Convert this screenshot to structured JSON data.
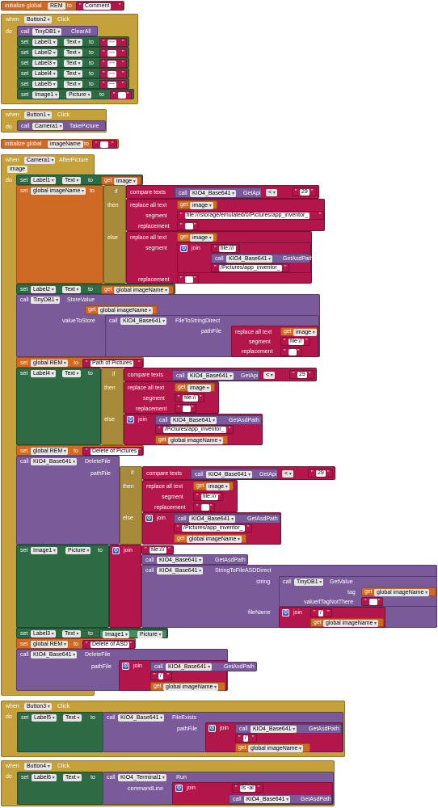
{
  "blocks": {
    "init_rem": {
      "label": "initialize global",
      "name": "REM",
      "to": "to",
      "value": "Comment"
    },
    "b2": {
      "when": "when",
      "button": "Button2",
      "event": "Click",
      "do": "do",
      "call": "call",
      "db": "TinyDB1",
      "method": "ClearAll",
      "set": "set",
      "to": "to",
      "prop_text": "Text",
      "prop_picture": "Picture",
      "labels": [
        "Label1",
        "Label2",
        "Label3",
        "Label4",
        "Label5"
      ],
      "val": "---",
      "image": "Image1",
      "picval": ""
    },
    "b1": {
      "when": "when",
      "button": "Button1",
      "event": "Click",
      "do": "do",
      "call": "call",
      "camera": "Camera1",
      "method": "TakePicture"
    },
    "init_imgname": {
      "label": "initialize global",
      "name": "imageName",
      "to": "to",
      "value": ""
    },
    "cam": {
      "when": "when",
      "camera": "Camera1",
      "event": "AfterPicture",
      "param": "image",
      "do": "do"
    }
  },
  "kw": {
    "set": "set",
    "to": "to",
    "get": "get",
    "call": "call",
    "if": "if",
    "then": "then",
    "else": "else",
    "join": "join",
    "compare": "compare texts",
    "replace": "replace all text",
    "segment": "segment",
    "replacement": "replacement",
    "text": "Text",
    "picture": "Picture",
    "image": "image",
    "gimg": "global imageName",
    "grem": "global REM",
    "k4": "KIO4_Base641",
    "getapi": "GetApi",
    "getasd": "GetAsdPath",
    "lt": "<",
    "n29": "29",
    "filepath": "file:///storage/emulated/0/Pictures/app_inventor_",
    "file3": "file:///",
    "file2": "file://",
    "pics": "/Pictures/app_inventor_",
    "empty": "",
    "slash": "/",
    "tinydb": "TinyDB1",
    "store": "StoreValue",
    "tag": "tag",
    "vts": "valueToStore",
    "f2s": "FileToStringDirect",
    "pathfile": "pathFile",
    "path_pics": "Path of Pictures",
    "del_pics": "Delete of Pictures",
    "deletefile": "DeleteFile",
    "image1": "Image1",
    "s2f": "StringToFileASDDirect",
    "string": "string",
    "getvalue": "GetValue",
    "vitnt": "valueIfTagNotThere",
    "filename": "fileName",
    "label3": "Label3",
    "del_asd": "Delete of ASD",
    "b3": "Button3",
    "click": "Click",
    "when": "when",
    "do": "do",
    "label5": "Label5",
    "fileexists": "FileExists",
    "b4": "Button4",
    "label6": "Label6",
    "terminal": "KIO4_Terminal1",
    "run": "Run",
    "cmdline": "commandLine",
    "lsal": "ls -al",
    "label1": "Label1",
    "label2": "Label2",
    "label4": "Label4"
  }
}
